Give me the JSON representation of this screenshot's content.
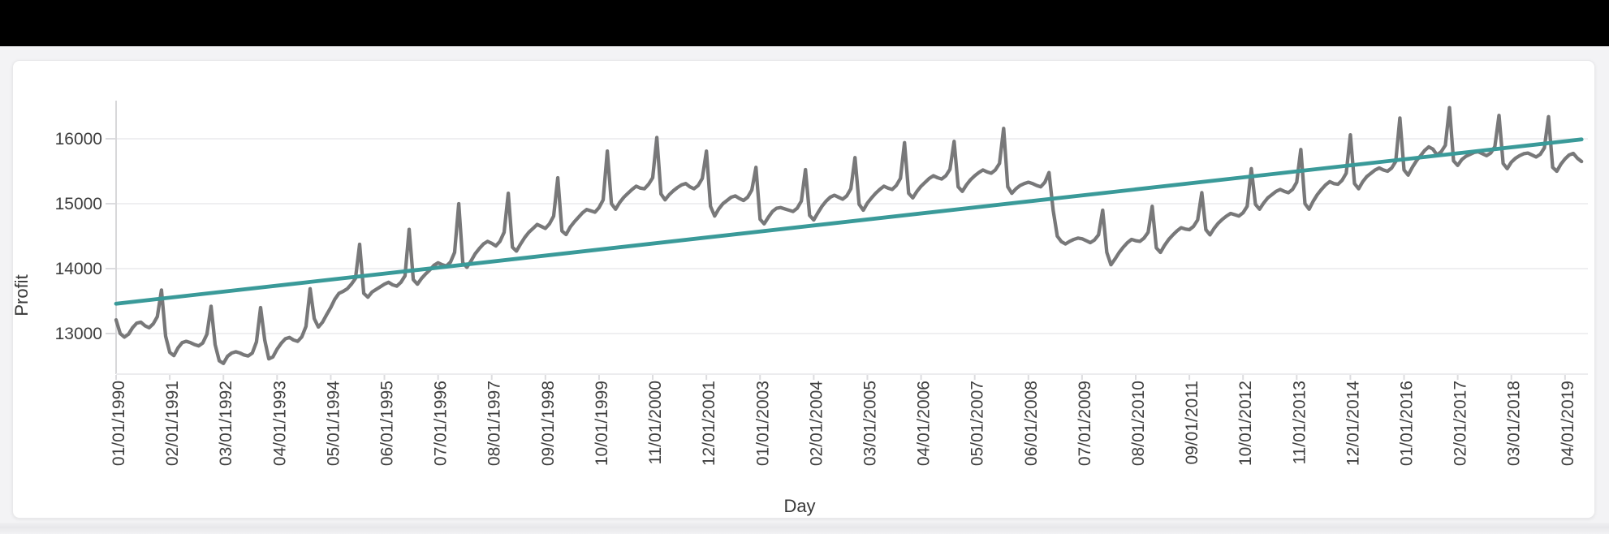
{
  "colors": {
    "top_bar": "#000000",
    "page_background": "#f3f3f5",
    "card_background": "#ffffff",
    "gridline": "#efeff1",
    "tick_text": "#3e3e3e",
    "profit_series": "#787879",
    "trend_series": "#3a9a99"
  },
  "chart_data": {
    "type": "line",
    "title": "",
    "xlabel": "Day",
    "ylabel": "Profit",
    "grid": "horizontal",
    "legend": "none",
    "y_ticks": [
      16000,
      15000,
      14000,
      13000
    ],
    "ylim": [
      12380,
      16590
    ],
    "x_frequency": "monthly",
    "x_start": "01/01/1990",
    "x_end": "08/01/2019",
    "x_tick_every_n_months": 13,
    "x_tick_labels": [
      "01/01/1990",
      "02/01/1991",
      "03/01/1992",
      "04/01/1993",
      "05/01/1994",
      "06/01/1995",
      "07/01/1996",
      "08/01/1997",
      "09/01/1998",
      "10/01/1999",
      "11/01/2000",
      "12/01/2001",
      "01/01/2003",
      "02/01/2004",
      "03/01/2005",
      "04/01/2006",
      "05/01/2007",
      "06/01/2008",
      "07/01/2009",
      "08/01/2010",
      "09/01/2011",
      "10/01/2012",
      "11/01/2013",
      "12/01/2014",
      "01/01/2016",
      "02/01/2017",
      "03/01/2018",
      "04/01/2019"
    ],
    "series": [
      {
        "name": "profit",
        "color": "#787879",
        "values": [
          13210,
          13000,
          12945,
          12990,
          13090,
          13160,
          13175,
          13120,
          13090,
          13150,
          13260,
          13670,
          12960,
          12710,
          12660,
          12780,
          12860,
          12880,
          12860,
          12830,
          12810,
          12855,
          12990,
          13420,
          12830,
          12580,
          12540,
          12650,
          12700,
          12720,
          12700,
          12670,
          12655,
          12700,
          12870,
          13400,
          12900,
          12610,
          12640,
          12760,
          12850,
          12920,
          12940,
          12900,
          12880,
          12950,
          13110,
          13690,
          13230,
          13100,
          13175,
          13290,
          13400,
          13530,
          13620,
          13650,
          13690,
          13760,
          13850,
          14375,
          13620,
          13560,
          13640,
          13680,
          13720,
          13760,
          13790,
          13750,
          13730,
          13790,
          13890,
          14605,
          13830,
          13760,
          13850,
          13920,
          13980,
          14050,
          14090,
          14060,
          14040,
          14100,
          14250,
          15000,
          14090,
          14020,
          14120,
          14230,
          14310,
          14380,
          14420,
          14390,
          14350,
          14420,
          14560,
          15160,
          14330,
          14270,
          14380,
          14480,
          14560,
          14620,
          14680,
          14650,
          14620,
          14690,
          14810,
          15400,
          14580,
          14525,
          14640,
          14720,
          14790,
          14860,
          14910,
          14890,
          14870,
          14940,
          15060,
          15810,
          15000,
          14915,
          15020,
          15100,
          15160,
          15220,
          15270,
          15240,
          15230,
          15300,
          15400,
          16020,
          15150,
          15060,
          15140,
          15200,
          15250,
          15290,
          15310,
          15260,
          15230,
          15280,
          15390,
          15810,
          14960,
          14810,
          14920,
          15000,
          15050,
          15100,
          15120,
          15080,
          15050,
          15100,
          15210,
          15560,
          14760,
          14690,
          14790,
          14880,
          14930,
          14940,
          14920,
          14900,
          14880,
          14930,
          15040,
          15525,
          14820,
          14750,
          14860,
          14960,
          15040,
          15100,
          15130,
          15100,
          15070,
          15120,
          15230,
          15710,
          14990,
          14900,
          15010,
          15090,
          15160,
          15220,
          15270,
          15240,
          15220,
          15280,
          15390,
          15940,
          15160,
          15090,
          15190,
          15270,
          15330,
          15390,
          15430,
          15400,
          15380,
          15430,
          15530,
          15960,
          15260,
          15190,
          15290,
          15370,
          15430,
          15480,
          15520,
          15490,
          15470,
          15520,
          15620,
          16160,
          15260,
          15160,
          15230,
          15280,
          15310,
          15330,
          15310,
          15280,
          15260,
          15330,
          15480,
          14900,
          14500,
          14415,
          14380,
          14420,
          14450,
          14470,
          14460,
          14430,
          14400,
          14440,
          14520,
          14900,
          14250,
          14060,
          14150,
          14250,
          14330,
          14400,
          14450,
          14430,
          14420,
          14470,
          14560,
          14960,
          14320,
          14250,
          14360,
          14450,
          14520,
          14580,
          14630,
          14610,
          14600,
          14650,
          14750,
          15170,
          14600,
          14520,
          14620,
          14700,
          14760,
          14810,
          14850,
          14830,
          14810,
          14860,
          14960,
          15540,
          14990,
          14915,
          15010,
          15090,
          15140,
          15190,
          15220,
          15190,
          15170,
          15220,
          15330,
          15835,
          15000,
          14915,
          15040,
          15140,
          15220,
          15290,
          15340,
          15310,
          15300,
          15360,
          15470,
          16060,
          15310,
          15230,
          15340,
          15420,
          15470,
          15520,
          15550,
          15520,
          15500,
          15550,
          15650,
          16320,
          15520,
          15440,
          15560,
          15660,
          15740,
          15820,
          15875,
          15840,
          15750,
          15800,
          15900,
          16480,
          15660,
          15590,
          15680,
          15730,
          15760,
          15790,
          15800,
          15770,
          15740,
          15780,
          15880,
          16360,
          15620,
          15540,
          15640,
          15700,
          15740,
          15770,
          15780,
          15750,
          15720,
          15760,
          15860,
          16340,
          15560,
          15500,
          15610,
          15690,
          15750,
          15775,
          15700,
          15650
        ]
      },
      {
        "name": "trend",
        "color": "#3a9a99",
        "shape": "straight-line",
        "start_value": 13460,
        "end_value": 15990
      }
    ]
  }
}
